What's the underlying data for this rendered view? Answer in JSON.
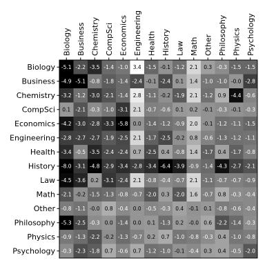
{
  "chart_data": {
    "type": "heatmap",
    "title": "",
    "xlabel": "",
    "ylabel": "",
    "x_tick_position": "top",
    "colormap": "gray",
    "color_range": [
      -4.8,
      3.4
    ],
    "colorbar": false,
    "grid": false,
    "categories": [
      "Biology",
      "Business",
      "Chemistry",
      "CompSci",
      "Economics",
      "Engineering",
      "Health",
      "History",
      "Law",
      "Math",
      "Other",
      "Philosophy",
      "Physics",
      "Psychology"
    ],
    "values": [
      [
        -5.1,
        -2.2,
        -3.5,
        -1.4,
        -1.0,
        3.4,
        -1.5,
        -0.1,
        -1.2,
        2.1,
        0.3,
        -0.3,
        -1.5,
        -1.5
      ],
      [
        -4.9,
        -5.1,
        -0.8,
        -1.8,
        -1.4,
        -2.4,
        -0.1,
        -2.4,
        0.1,
        1.4,
        -1.0,
        -1.0,
        -0.0,
        -2.8
      ],
      [
        -3.2,
        -1.2,
        -3.0,
        -2.1,
        -1.4,
        2.8,
        -1.1,
        -0.2,
        -1.9,
        2.1,
        -1.2,
        0.9,
        -4.4,
        -0.6
      ],
      [
        0.1,
        -2.1,
        -0.3,
        -1.0,
        -3.1,
        2.1,
        -0.7,
        -0.6,
        0.1,
        0.2,
        -0.1,
        -0.3,
        -0.1,
        -0.3
      ],
      [
        -4.2,
        -3.0,
        -2.8,
        -3.3,
        -5.8,
        0.0,
        -1.4,
        -1.2,
        -0.9,
        2.0,
        -0.1,
        -1.2,
        -1.1,
        -1.5
      ],
      [
        -2.8,
        -2.7,
        -2.7,
        -1.9,
        -2.5,
        2.1,
        -1.7,
        -2.5,
        -0.2,
        0.8,
        -0.6,
        -1.3,
        -1.2,
        -1.1
      ],
      [
        -3.4,
        -0.5,
        -3.5,
        -2.4,
        -2.4,
        0.7,
        -2.5,
        0.4,
        -0.8,
        1.4,
        -1.7,
        0.4,
        -1.7,
        -0.8
      ],
      [
        -8.0,
        -3.1,
        -4.8,
        -2.9,
        -3.4,
        -2.8,
        -3.4,
        -6.4,
        -3.9,
        -0.9,
        -1.4,
        -4.3,
        -2.7,
        -2.1
      ],
      [
        -4.5,
        -3.6,
        0.2,
        -3.1,
        -2.4,
        2.1,
        -0.8,
        -0.4,
        -0.7,
        2.1,
        -1.1,
        -0.7,
        -0.7,
        -0.9
      ],
      [
        -2.1,
        -0.2,
        -1.5,
        -1.3,
        -0.8,
        -0.7,
        -2.0,
        0.3,
        -2.0,
        1.6,
        -0.7,
        0.8,
        -0.3,
        -0.4
      ],
      [
        -0.8,
        -1.1,
        -0.0,
        0.8,
        -0.4,
        0.0,
        -0.5,
        -0.3,
        0.4,
        -0.1,
        0.1,
        -0.8,
        -0.6,
        -0.4
      ],
      [
        -5.3,
        -2.5,
        -0.3,
        0.0,
        -1.4,
        0.0,
        0.1,
        -1.3,
        0.2,
        -0.0,
        0.6,
        -2.2,
        -1.4,
        -0.3
      ],
      [
        -0.9,
        -1.3,
        -2.2,
        -0.2,
        -1.3,
        -0.7,
        0.2,
        0.7,
        -1.0,
        -0.8,
        -0.3,
        0.4,
        -1.0,
        -0.8
      ],
      [
        -0.3,
        -2.3,
        -1.8,
        0.7,
        -0.6,
        0.7,
        -1.2,
        -1.0,
        -0.1,
        -0.4,
        0.3,
        0.4,
        -0.5,
        -2.0
      ]
    ]
  }
}
